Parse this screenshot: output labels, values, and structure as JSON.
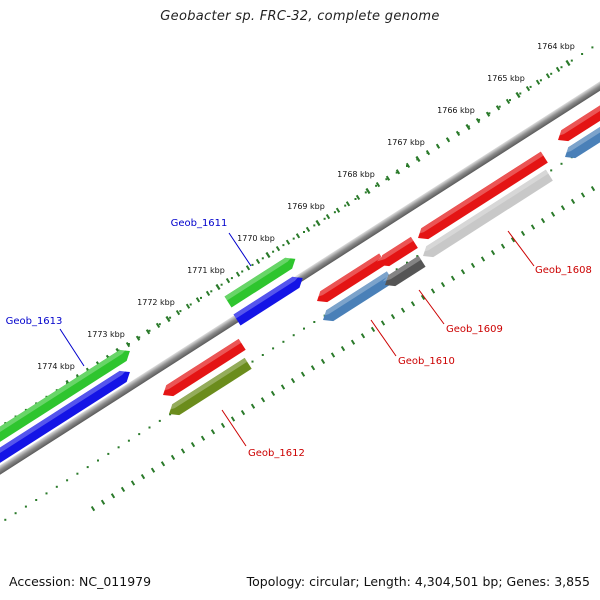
{
  "title": "Geobacter sp. FRC-32, complete genome",
  "footer": {
    "accession": "Accession: NC_011979",
    "summary": "Topology: circular; Length: 4,304,501 bp; Genes: 3,855"
  },
  "colors": {
    "green": "#2ec52e",
    "blue": "#1414e6",
    "red": "#e41414",
    "olive": "#6b8c1c",
    "steelblue": "#4a80b8",
    "darkgray": "#555555",
    "lightgray": "#c8c8c8",
    "tick": "#2a7a2a",
    "forward_label": "#0000cc",
    "reverse_label": "#cc0000"
  },
  "scale": {
    "ticks": [
      {
        "label": "1764 kbp",
        "kbp": 1764
      },
      {
        "label": "1765 kbp",
        "kbp": 1765
      },
      {
        "label": "1766 kbp",
        "kbp": 1766
      },
      {
        "label": "1767 kbp",
        "kbp": 1767
      },
      {
        "label": "1768 kbp",
        "kbp": 1768
      },
      {
        "label": "1769 kbp",
        "kbp": 1769
      },
      {
        "label": "1770 kbp",
        "kbp": 1770
      },
      {
        "label": "1771 kbp",
        "kbp": 1771
      },
      {
        "label": "1772 kbp",
        "kbp": 1772
      },
      {
        "label": "1773 kbp",
        "kbp": 1773
      },
      {
        "label": "1774 kbp",
        "kbp": 1774
      }
    ]
  },
  "genes": [
    {
      "name": "Geob_1608",
      "strand": "reverse"
    },
    {
      "name": "Geob_1609",
      "strand": "reverse"
    },
    {
      "name": "Geob_1610",
      "strand": "reverse"
    },
    {
      "name": "Geob_1611",
      "strand": "forward"
    },
    {
      "name": "Geob_1612",
      "strand": "reverse"
    },
    {
      "name": "Geob_1613",
      "strand": "forward"
    }
  ]
}
